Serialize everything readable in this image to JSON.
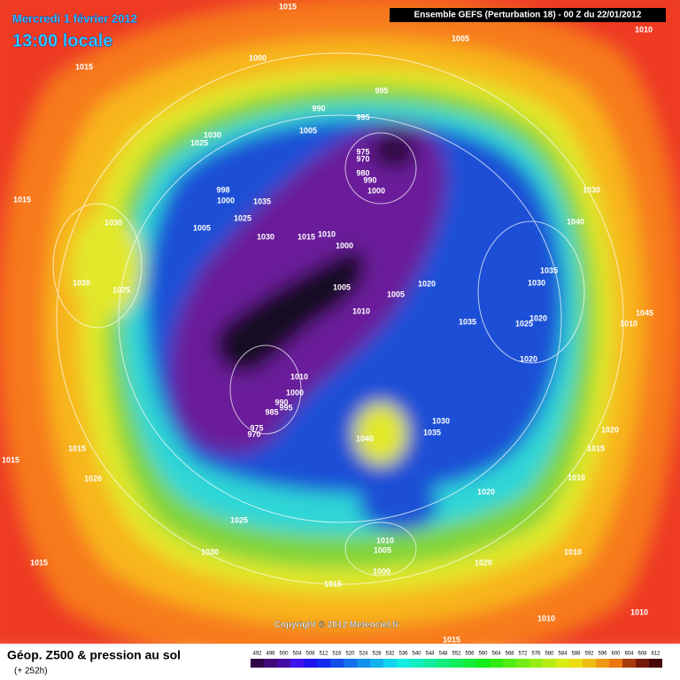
{
  "title": {
    "date": "Mercredi 1 février 2012",
    "time": "13:00 locale"
  },
  "header": "Ensemble GEFS (Perturbation 18)  -  00 Z du 22/01/2012",
  "copyright": "Copyright © 2012 Meteociel.fr",
  "footer": {
    "title": "Géop. Z500 & pression au sol",
    "lead": "(+ 252h)"
  },
  "colorbar": [
    492,
    496,
    500,
    504,
    508,
    512,
    516,
    520,
    524,
    528,
    532,
    536,
    540,
    544,
    548,
    552,
    556,
    560,
    564,
    568,
    572,
    576,
    580,
    584,
    588,
    592,
    596,
    600,
    604,
    608,
    612
  ],
  "isobar_labels": [
    1015,
    1005,
    1010,
    1015,
    1000,
    995,
    990,
    995,
    1030,
    1025,
    1005,
    975,
    970,
    980,
    990,
    1000,
    1015,
    998,
    1000,
    1035,
    1030,
    1030,
    1005,
    1025,
    1030,
    1015,
    1010,
    1000,
    1040,
    1035,
    1030,
    1025,
    1005,
    1005,
    1020,
    1030,
    1010,
    1035,
    1020,
    1025,
    1045,
    1010,
    1020,
    1010,
    1000,
    990,
    995,
    985,
    975,
    970,
    1030,
    1035,
    1040,
    1020,
    1015,
    1015,
    1015,
    1020,
    1010,
    1020,
    1025,
    1030,
    1010,
    1005,
    1000,
    1020,
    1010,
    1015,
    1015,
    1010,
    1010,
    1015
  ]
}
